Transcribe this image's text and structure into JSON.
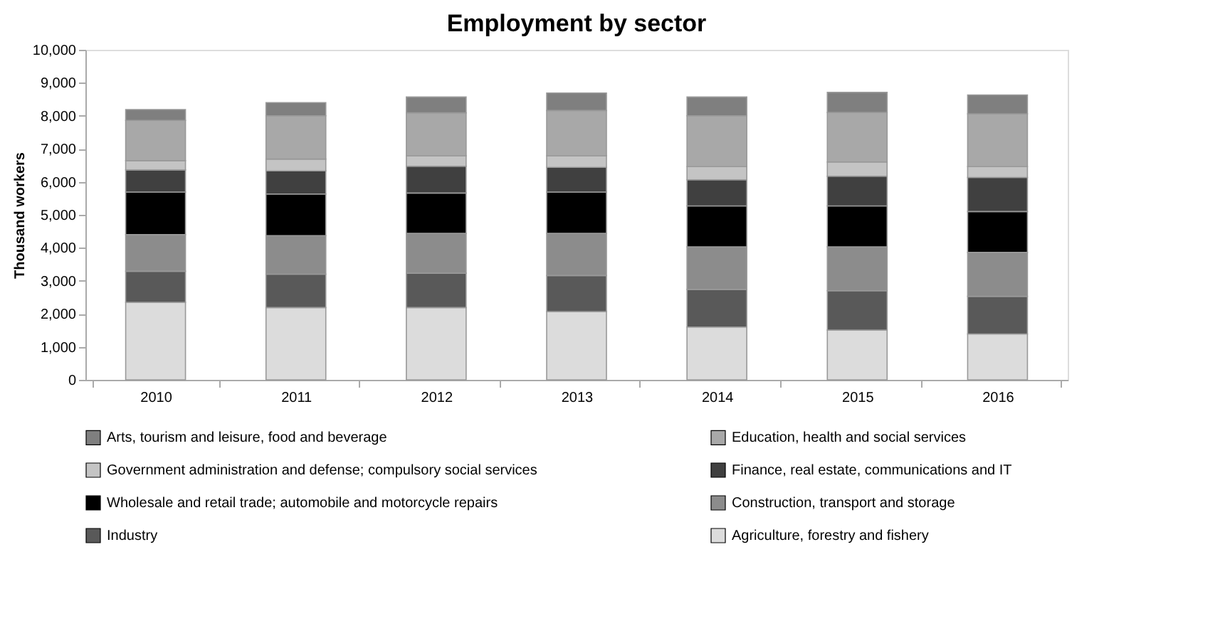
{
  "chart_data": {
    "type": "bar",
    "stacked": true,
    "title": "Employment by sector",
    "ylabel": "Thousand workers",
    "categories": [
      "2010",
      "2011",
      "2012",
      "2013",
      "2014",
      "2015",
      "2016"
    ],
    "ylim": [
      0,
      10000
    ],
    "yticks": [
      {
        "value": 0,
        "label": "0"
      },
      {
        "value": 1000,
        "label": "1,000"
      },
      {
        "value": 2000,
        "label": "2,000"
      },
      {
        "value": 3000,
        "label": "3,000"
      },
      {
        "value": 4000,
        "label": "4,000"
      },
      {
        "value": 5000,
        "label": "5,000"
      },
      {
        "value": 6000,
        "label": "6,000"
      },
      {
        "value": 7000,
        "label": "7,000"
      },
      {
        "value": 8000,
        "label": "8,000"
      },
      {
        "value": 9000,
        "label": "9,000"
      },
      {
        "value": 10000,
        "label": "10,000"
      }
    ],
    "grid": false,
    "legend": "bottom",
    "series": [
      {
        "name": "Agriculture, forestry and fishery",
        "color": "#dcdcdc",
        "values": [
          2350,
          2190,
          2190,
          2070,
          1600,
          1510,
          1390
        ]
      },
      {
        "name": "Industry",
        "color": "#595959",
        "values": [
          940,
          1010,
          1040,
          1090,
          1140,
          1190,
          1140
        ]
      },
      {
        "name": "Construction, transport and storage",
        "color": "#8c8c8c",
        "values": [
          1110,
          1170,
          1210,
          1280,
          1290,
          1330,
          1330
        ]
      },
      {
        "name": "Wholesale and retail trade; automobile and motorcycle repairs",
        "color": "#000000",
        "values": [
          1290,
          1260,
          1220,
          1250,
          1240,
          1240,
          1240
        ]
      },
      {
        "name": "Finance, real estate, communications and IT",
        "color": "#404040",
        "values": [
          670,
          700,
          810,
          750,
          790,
          900,
          1030
        ]
      },
      {
        "name": "Government administration and defense; compulsory social services",
        "color": "#c4c4c4",
        "values": [
          280,
          360,
          320,
          350,
          400,
          430,
          330
        ]
      },
      {
        "name": "Education, health and social services",
        "color": "#a8a8a8",
        "values": [
          1220,
          1310,
          1300,
          1370,
          1540,
          1500,
          1600
        ]
      },
      {
        "name": "Arts, tourism and leisure, food and beverage",
        "color": "#7f7f7f",
        "values": [
          330,
          400,
          480,
          530,
          570,
          610,
          570
        ]
      }
    ]
  }
}
